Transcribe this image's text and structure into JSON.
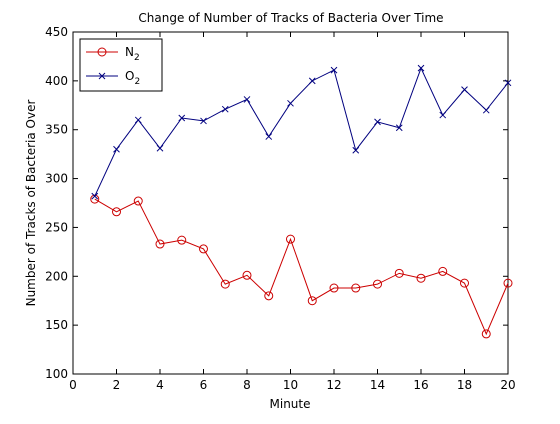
{
  "chart_data": {
    "type": "line",
    "title": "Change of Number of Tracks of Bacteria Over Time",
    "xlabel": "Minute",
    "ylabel": "Number of Tracks of Bacteria Over",
    "xlim": [
      0,
      20
    ],
    "ylim": [
      100,
      450
    ],
    "xticks": [
      0,
      2,
      4,
      6,
      8,
      10,
      12,
      14,
      16,
      18,
      20
    ],
    "yticks": [
      100,
      150,
      200,
      250,
      300,
      350,
      400,
      450
    ],
    "grid": false,
    "legend_position": "top-left",
    "x": [
      1,
      2,
      3,
      4,
      5,
      6,
      7,
      8,
      9,
      10,
      11,
      12,
      13,
      14,
      15,
      16,
      17,
      18,
      19,
      20
    ],
    "series": [
      {
        "name": "N",
        "name_sub": "2",
        "color": "#cc0000",
        "marker": "circle",
        "values": [
          279,
          266,
          277,
          233,
          237,
          228,
          192,
          201,
          180,
          238,
          175,
          188,
          188,
          192,
          203,
          198,
          205,
          193,
          141,
          193
        ]
      },
      {
        "name": "O",
        "name_sub": "2",
        "color": "#00007f",
        "marker": "x",
        "values": [
          282,
          330,
          360,
          331,
          362,
          359,
          371,
          381,
          343,
          377,
          400,
          411,
          329,
          358,
          352,
          413,
          365,
          391,
          370,
          398
        ]
      }
    ]
  }
}
